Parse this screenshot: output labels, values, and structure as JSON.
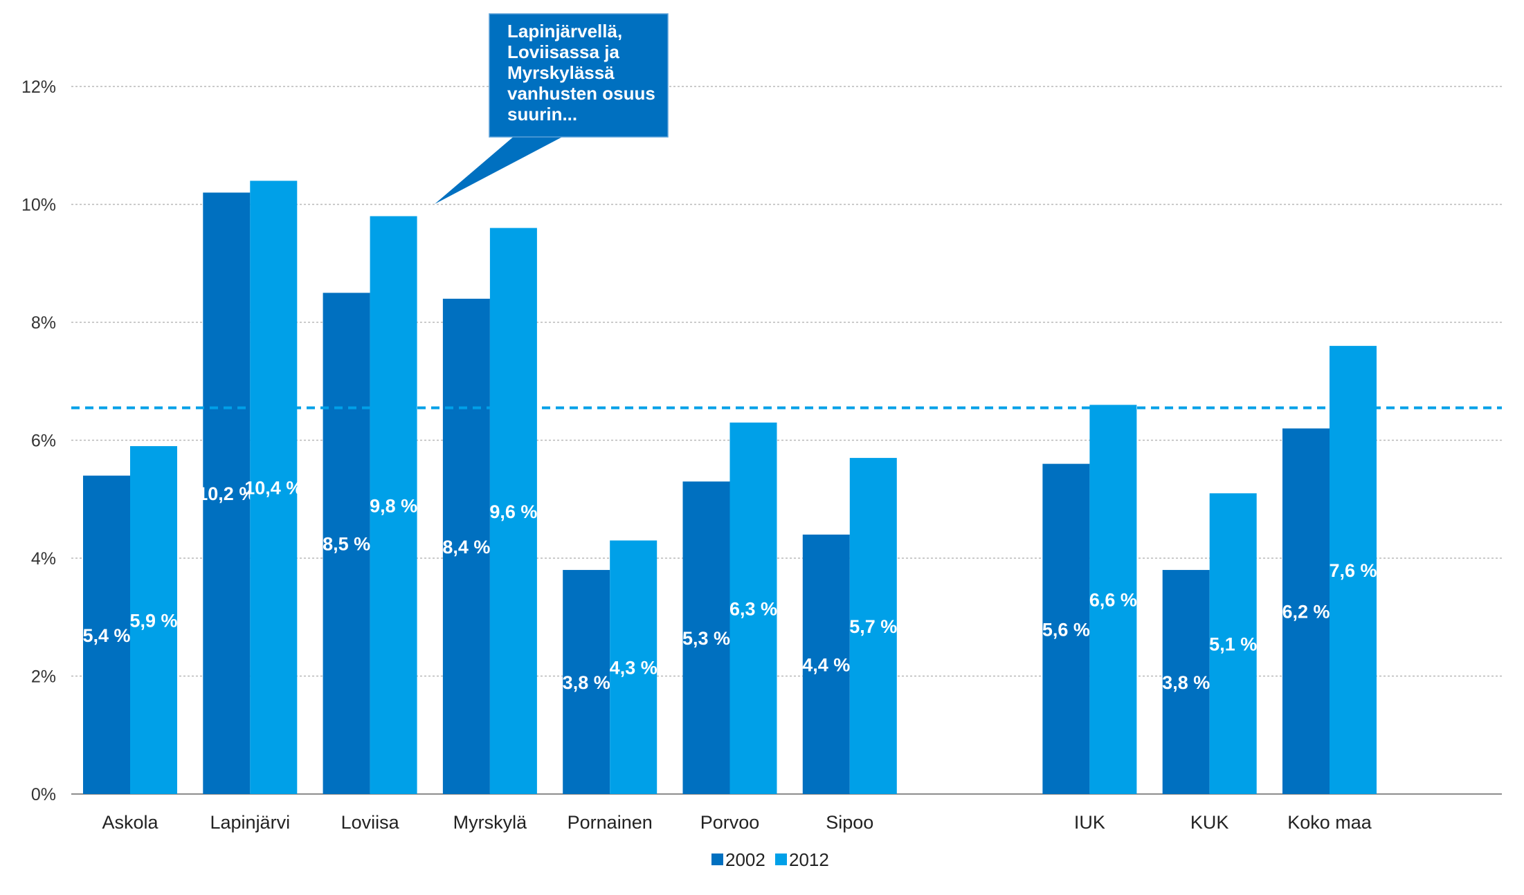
{
  "chart_data": {
    "type": "bar",
    "categories": [
      "Askola",
      "Lapinjärvi",
      "Loviisa",
      "Myrskylä",
      "Pornainen",
      "Porvoo",
      "Sipoo",
      "",
      "IUK",
      "KUK",
      "Koko maa"
    ],
    "series": [
      {
        "name": "2002",
        "color": "#0070c0",
        "values": [
          5.4,
          10.2,
          8.5,
          8.4,
          3.8,
          5.3,
          4.4,
          null,
          5.6,
          3.8,
          6.2
        ],
        "labels": [
          "5,4 %",
          "10,2 %",
          "8,5 %",
          "8,4 %",
          "3,8 %",
          "5,3 %",
          "4,4 %",
          "",
          "5,6 %",
          "3,8 %",
          "6,2 %"
        ]
      },
      {
        "name": "2012",
        "color": "#00a0e8",
        "values": [
          5.9,
          10.4,
          9.8,
          9.6,
          4.3,
          6.3,
          5.7,
          null,
          6.6,
          5.1,
          7.6
        ],
        "labels": [
          "5,9 %",
          "10,4 %",
          "9,8 %",
          "9,6 %",
          "4,3 %",
          "6,3 %",
          "5,7 %",
          "",
          "6,6 %",
          "5,1 %",
          "7,6 %"
        ]
      }
    ],
    "yticks": [
      "0%",
      "2%",
      "4%",
      "6%",
      "8%",
      "10%",
      "12%"
    ],
    "ylim": [
      0,
      12
    ],
    "reference_line": {
      "value": 6.55,
      "style": "dashed",
      "color": "#00a0e8"
    },
    "grid": true,
    "legend": "bottom-center",
    "annotation": {
      "lines": [
        "Lapinjärvellä,",
        "Loviisassa ja",
        "Myrskylässä",
        "vanhusten osuus",
        "suurin..."
      ],
      "color": "#0070c0"
    }
  }
}
